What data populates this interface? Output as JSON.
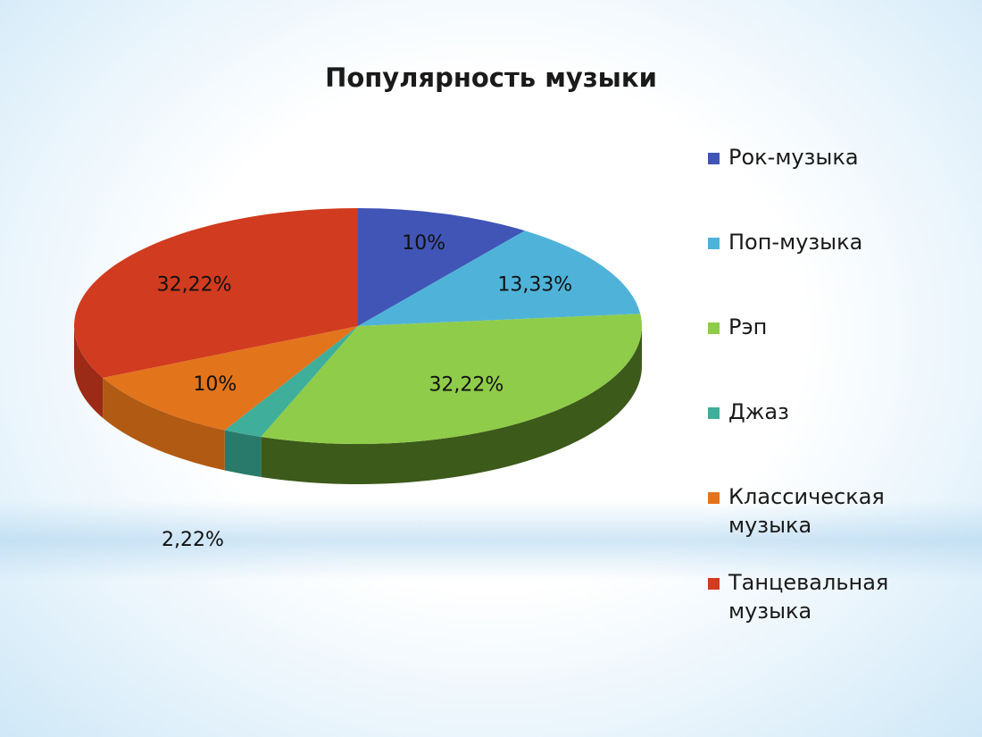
{
  "chart_data": {
    "type": "pie",
    "title": "Популярность музыки",
    "categories": [
      "Рок-музыка",
      "Поп-музыка",
      "Рэп",
      "Джаз",
      "Классическая музыка",
      "Танцевальная музыка"
    ],
    "values": [
      10,
      13.33,
      32.22,
      2.22,
      10,
      32.22
    ],
    "data_labels": [
      "10%",
      "13,33%",
      "32,22%",
      "2,22%",
      "10%",
      "32,22%"
    ],
    "colors": [
      "#4055b5",
      "#4fb3d9",
      "#8fcc49",
      "#3fae9a",
      "#e2741c",
      "#d13b1f"
    ],
    "side_colors": [
      "#2c3c86",
      "#3586a6",
      "#3c5a1a",
      "#2a7a6b",
      "#b05a14",
      "#9b2a16"
    ],
    "legend_position": "right",
    "style": "3d"
  }
}
